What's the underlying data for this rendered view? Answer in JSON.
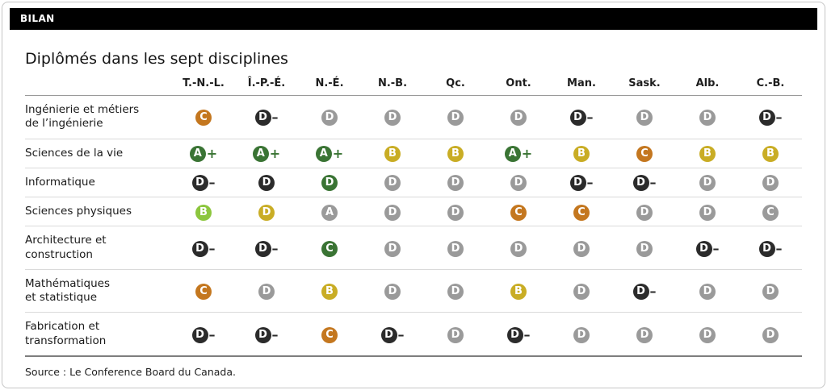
{
  "banner": {
    "label": "BILAN"
  },
  "title": "Diplômés dans les sept disciplines",
  "source": "Source : Le Conference Board du Canada.",
  "legend_colors": {
    "green": "#3a7434",
    "lightgreen": "#8cc63e",
    "gold": "#c9ad25",
    "orange": "#c4771f",
    "gray": "#9a9a9a",
    "black": "#2b2b2b"
  },
  "table": {
    "columns": [
      "T.-N.-L.",
      "Î.-P.-É.",
      "N.-É.",
      "N.-B.",
      "Qc.",
      "Ont.",
      "Man.",
      "Sask.",
      "Alb.",
      "C.-B."
    ],
    "rows": [
      {
        "label": "Ingénierie et métiers\nde l’ingénierie",
        "grades": [
          {
            "letter": "C",
            "color": "orange"
          },
          {
            "letter": "D",
            "sign": "–",
            "color": "black"
          },
          {
            "letter": "D",
            "color": "gray"
          },
          {
            "letter": "D",
            "color": "gray"
          },
          {
            "letter": "D",
            "color": "gray"
          },
          {
            "letter": "D",
            "color": "gray"
          },
          {
            "letter": "D",
            "sign": "–",
            "color": "black"
          },
          {
            "letter": "D",
            "color": "gray"
          },
          {
            "letter": "D",
            "color": "gray"
          },
          {
            "letter": "D",
            "sign": "–",
            "color": "black"
          }
        ]
      },
      {
        "label": "Sciences de la vie",
        "grades": [
          {
            "letter": "A",
            "sign": "+",
            "color": "green"
          },
          {
            "letter": "A",
            "sign": "+",
            "color": "green"
          },
          {
            "letter": "A",
            "sign": "+",
            "color": "green"
          },
          {
            "letter": "B",
            "color": "gold"
          },
          {
            "letter": "B",
            "color": "gold"
          },
          {
            "letter": "A",
            "sign": "+",
            "color": "green"
          },
          {
            "letter": "B",
            "color": "gold"
          },
          {
            "letter": "C",
            "color": "orange"
          },
          {
            "letter": "B",
            "color": "gold"
          },
          {
            "letter": "B",
            "color": "gold"
          }
        ]
      },
      {
        "label": "Informatique",
        "grades": [
          {
            "letter": "D",
            "sign": "–",
            "color": "black"
          },
          {
            "letter": "D",
            "color": "black"
          },
          {
            "letter": "D",
            "color": "green"
          },
          {
            "letter": "D",
            "color": "gray"
          },
          {
            "letter": "D",
            "color": "gray"
          },
          {
            "letter": "D",
            "color": "gray"
          },
          {
            "letter": "D",
            "sign": "–",
            "color": "black"
          },
          {
            "letter": "D",
            "sign": "–",
            "color": "black"
          },
          {
            "letter": "D",
            "color": "gray"
          },
          {
            "letter": "D",
            "color": "gray"
          }
        ]
      },
      {
        "label": "Sciences physiques",
        "grades": [
          {
            "letter": "B",
            "color": "lightgreen"
          },
          {
            "letter": "D",
            "color": "gold"
          },
          {
            "letter": "A",
            "color": "gray"
          },
          {
            "letter": "D",
            "color": "gray"
          },
          {
            "letter": "D",
            "color": "gray"
          },
          {
            "letter": "C",
            "color": "orange"
          },
          {
            "letter": "C",
            "color": "orange"
          },
          {
            "letter": "D",
            "color": "gray"
          },
          {
            "letter": "D",
            "color": "gray"
          },
          {
            "letter": "C",
            "color": "gray"
          }
        ]
      },
      {
        "label": "Architecture et\nconstruction",
        "grades": [
          {
            "letter": "D",
            "sign": "–",
            "color": "black"
          },
          {
            "letter": "D",
            "sign": "–",
            "color": "black"
          },
          {
            "letter": "C",
            "color": "green"
          },
          {
            "letter": "D",
            "color": "gray"
          },
          {
            "letter": "D",
            "color": "gray"
          },
          {
            "letter": "D",
            "color": "gray"
          },
          {
            "letter": "D",
            "color": "gray"
          },
          {
            "letter": "D",
            "color": "gray"
          },
          {
            "letter": "D",
            "sign": "–",
            "color": "black"
          },
          {
            "letter": "D",
            "sign": "–",
            "color": "black"
          }
        ]
      },
      {
        "label": "Mathématiques\net statistique",
        "grades": [
          {
            "letter": "C",
            "color": "orange"
          },
          {
            "letter": "D",
            "color": "gray"
          },
          {
            "letter": "B",
            "color": "gold"
          },
          {
            "letter": "D",
            "color": "gray"
          },
          {
            "letter": "D",
            "color": "gray"
          },
          {
            "letter": "B",
            "color": "gold"
          },
          {
            "letter": "D",
            "color": "gray"
          },
          {
            "letter": "D",
            "sign": "–",
            "color": "black"
          },
          {
            "letter": "D",
            "color": "gray"
          },
          {
            "letter": "D",
            "color": "gray"
          }
        ]
      },
      {
        "label": "Fabrication et\ntransformation",
        "grades": [
          {
            "letter": "D",
            "sign": "–",
            "color": "black"
          },
          {
            "letter": "D",
            "sign": "–",
            "color": "black"
          },
          {
            "letter": "C",
            "color": "orange"
          },
          {
            "letter": "D",
            "sign": "–",
            "color": "black"
          },
          {
            "letter": "D",
            "color": "gray"
          },
          {
            "letter": "D",
            "sign": "–",
            "color": "black"
          },
          {
            "letter": "D",
            "color": "gray"
          },
          {
            "letter": "D",
            "color": "gray"
          },
          {
            "letter": "D",
            "color": "gray"
          },
          {
            "letter": "D",
            "color": "gray"
          }
        ]
      }
    ]
  },
  "chart_data": {
    "type": "table",
    "title": "Diplômés dans les sept disciplines",
    "columns": [
      "T.-N.-L.",
      "Î.-P.-É.",
      "N.-É.",
      "N.-B.",
      "Qc.",
      "Ont.",
      "Man.",
      "Sask.",
      "Alb.",
      "C.-B."
    ],
    "row_labels": [
      "Ingénierie et métiers de l’ingénierie",
      "Sciences de la vie",
      "Informatique",
      "Sciences physiques",
      "Architecture et construction",
      "Mathématiques et statistique",
      "Fabrication et transformation"
    ],
    "grades": [
      [
        "C",
        "D-",
        "D",
        "D",
        "D",
        "D",
        "D-",
        "D",
        "D",
        "D-"
      ],
      [
        "A+",
        "A+",
        "A+",
        "B",
        "B",
        "A+",
        "B",
        "C",
        "B",
        "B"
      ],
      [
        "D-",
        "D",
        "D",
        "D",
        "D",
        "D",
        "D-",
        "D-",
        "D",
        "D"
      ],
      [
        "B",
        "D",
        "A",
        "D",
        "D",
        "C",
        "C",
        "D",
        "D",
        "C"
      ],
      [
        "D-",
        "D-",
        "C",
        "D",
        "D",
        "D",
        "D",
        "D",
        "D-",
        "D-"
      ],
      [
        "C",
        "D",
        "B",
        "D",
        "D",
        "B",
        "D",
        "D-",
        "D",
        "D"
      ],
      [
        "D-",
        "D-",
        "C",
        "D-",
        "D",
        "D-",
        "D",
        "D",
        "D",
        "D"
      ]
    ],
    "badge_colors": [
      [
        "orange",
        "black",
        "gray",
        "gray",
        "gray",
        "gray",
        "black",
        "gray",
        "gray",
        "black"
      ],
      [
        "green",
        "green",
        "green",
        "gold",
        "gold",
        "green",
        "gold",
        "orange",
        "gold",
        "gold"
      ],
      [
        "black",
        "black",
        "green",
        "gray",
        "gray",
        "gray",
        "black",
        "black",
        "gray",
        "gray"
      ],
      [
        "lightgreen",
        "gold",
        "gray",
        "gray",
        "gray",
        "orange",
        "orange",
        "gray",
        "gray",
        "gray"
      ],
      [
        "black",
        "black",
        "green",
        "gray",
        "gray",
        "gray",
        "gray",
        "gray",
        "black",
        "black"
      ],
      [
        "orange",
        "gray",
        "gold",
        "gray",
        "gray",
        "gold",
        "gray",
        "black",
        "gray",
        "gray"
      ],
      [
        "black",
        "black",
        "orange",
        "black",
        "gray",
        "black",
        "gray",
        "gray",
        "gray",
        "gray"
      ]
    ],
    "legend_position": "none",
    "grid": "horizontal-separators",
    "source": "Source : Le Conference Board du Canada."
  }
}
